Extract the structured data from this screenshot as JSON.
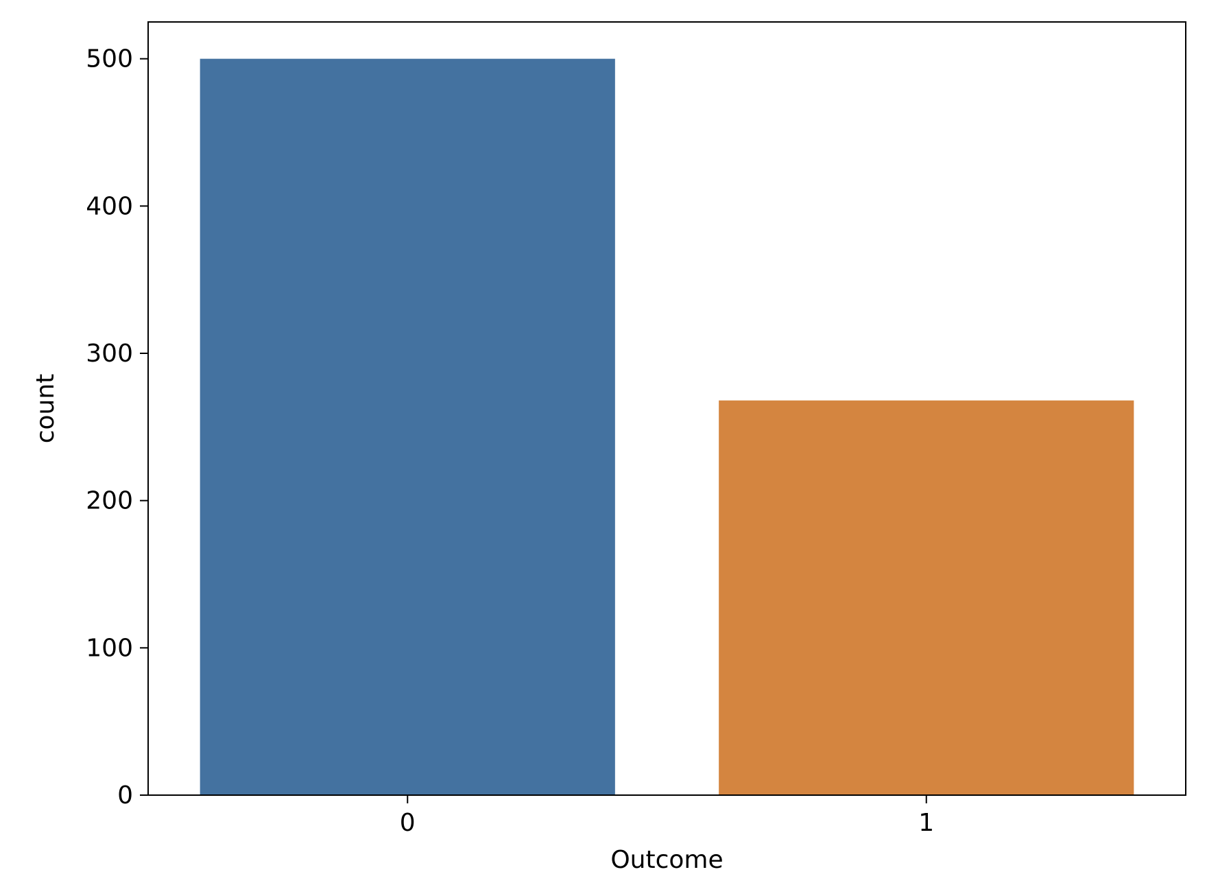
{
  "chart_data": {
    "type": "bar",
    "categories": [
      "0",
      "1"
    ],
    "values": [
      500,
      268
    ],
    "colors": [
      "#4472a0",
      "#d48540"
    ],
    "xlabel": "Outcome",
    "ylabel": "count",
    "ylim": [
      0,
      525
    ],
    "yticks": [
      0,
      100,
      200,
      300,
      400,
      500
    ],
    "grid": false,
    "legend": "none",
    "frame_color": "#000000"
  }
}
